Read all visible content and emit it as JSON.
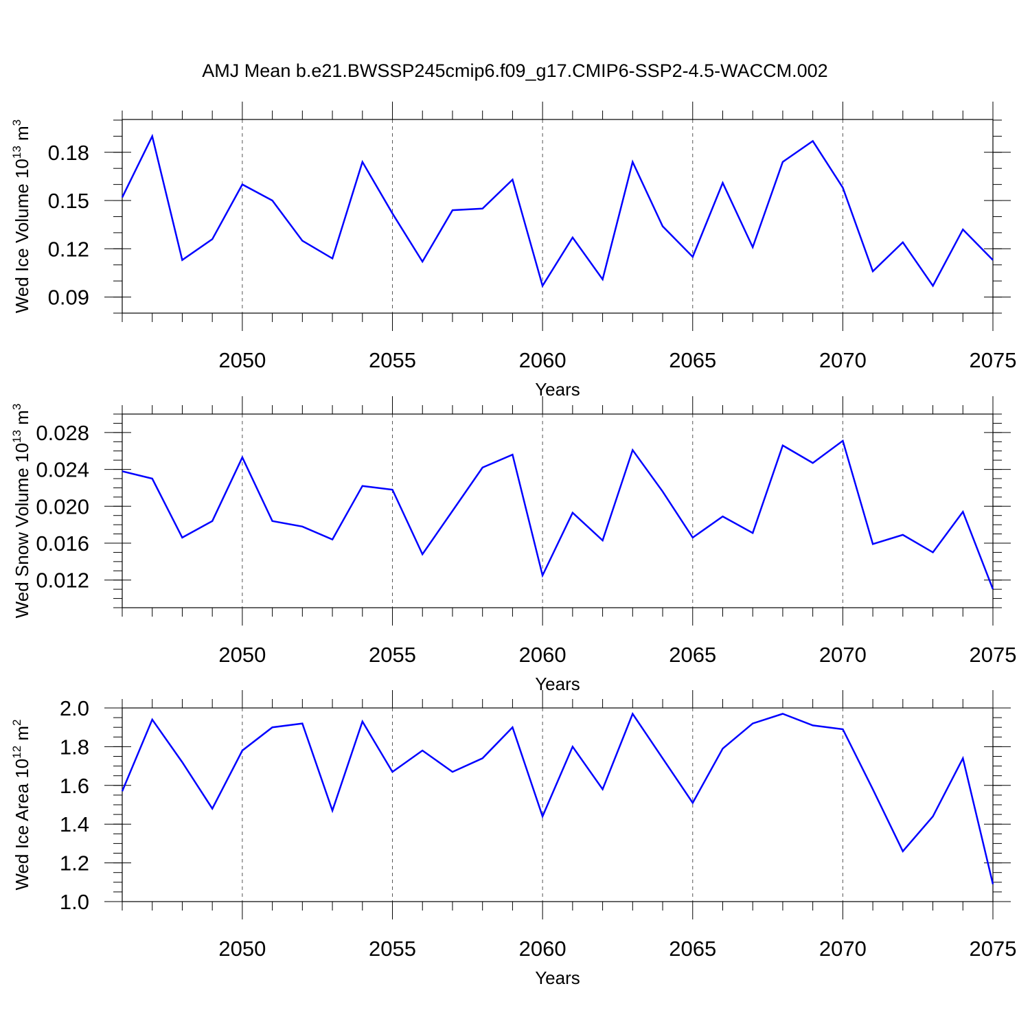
{
  "title": "AMJ Mean b.e21.BWSSP245cmip6.f09_g17.CMIP6-SSP2-4.5-WACCM.002",
  "colors": {
    "line": "#0000ff",
    "axis": "#000000",
    "grid": "#555555"
  },
  "chart_data": [
    {
      "type": "line",
      "ylabel": "Wed Ice Volume",
      "ylabel_unit_base": "10",
      "ylabel_unit_exp": "13",
      "ylabel_unit": "m",
      "ylabel_unit_pow": "3",
      "xlabel": "Years",
      "xlim": [
        2046,
        2075
      ],
      "ylim": [
        0.08,
        0.2004
      ],
      "x_ticks": [
        2050,
        2055,
        2060,
        2065,
        2070,
        2075
      ],
      "y_ticks": [
        "0.09",
        "0.12",
        "0.15",
        "0.18"
      ],
      "y_minor_step": 0.01,
      "grid": "x-dashed",
      "x": [
        2046,
        2047,
        2048,
        2049,
        2050,
        2051,
        2052,
        2053,
        2054,
        2055,
        2056,
        2057,
        2058,
        2059,
        2060,
        2061,
        2062,
        2063,
        2064,
        2065,
        2066,
        2067,
        2068,
        2069,
        2070,
        2071,
        2072,
        2073,
        2074,
        2075
      ],
      "values": [
        0.152,
        0.19,
        0.113,
        0.126,
        0.16,
        0.15,
        0.125,
        0.114,
        0.174,
        0.142,
        0.112,
        0.144,
        0.145,
        0.163,
        0.097,
        0.127,
        0.101,
        0.174,
        0.134,
        0.115,
        0.161,
        0.121,
        0.174,
        0.187,
        0.158,
        0.106,
        0.124,
        0.097,
        0.132,
        0.113
      ]
    },
    {
      "type": "line",
      "ylabel": "Wed Snow Volume",
      "ylabel_unit_base": "10",
      "ylabel_unit_exp": "13",
      "ylabel_unit": "m",
      "ylabel_unit_pow": "3",
      "xlabel": "Years",
      "xlim": [
        2046,
        2075
      ],
      "ylim": [
        0.009,
        0.03
      ],
      "x_ticks": [
        2050,
        2055,
        2060,
        2065,
        2070,
        2075
      ],
      "y_ticks": [
        "0.012",
        "0.016",
        "0.020",
        "0.024",
        "0.028"
      ],
      "y_minor_step": 0.001,
      "grid": "x-dashed",
      "x": [
        2046,
        2047,
        2048,
        2049,
        2050,
        2051,
        2052,
        2053,
        2054,
        2055,
        2056,
        2057,
        2058,
        2059,
        2060,
        2061,
        2062,
        2063,
        2064,
        2065,
        2066,
        2067,
        2068,
        2069,
        2070,
        2071,
        2072,
        2073,
        2074,
        2075
      ],
      "values": [
        0.0238,
        0.023,
        0.0166,
        0.0184,
        0.0253,
        0.0184,
        0.0178,
        0.0164,
        0.0222,
        0.0218,
        0.0148,
        0.0195,
        0.0242,
        0.0256,
        0.0125,
        0.0193,
        0.0163,
        0.0261,
        0.0216,
        0.0166,
        0.0189,
        0.0171,
        0.0266,
        0.0247,
        0.0271,
        0.0159,
        0.0169,
        0.015,
        0.0194,
        0.011
      ]
    },
    {
      "type": "line",
      "ylabel": "Wed Ice Area",
      "ylabel_unit_base": "10",
      "ylabel_unit_exp": "12",
      "ylabel_unit": "m",
      "ylabel_unit_pow": "2",
      "xlabel": "Years",
      "xlim": [
        2046,
        2075
      ],
      "ylim": [
        1.0,
        2.0
      ],
      "x_ticks": [
        2050,
        2055,
        2060,
        2065,
        2070,
        2075
      ],
      "y_ticks": [
        "1.0",
        "1.2",
        "1.4",
        "1.6",
        "1.8",
        "2.0"
      ],
      "y_minor_step": 0.05,
      "grid": "x-dashed",
      "x": [
        2046,
        2047,
        2048,
        2049,
        2050,
        2051,
        2052,
        2053,
        2054,
        2055,
        2056,
        2057,
        2058,
        2059,
        2060,
        2061,
        2062,
        2063,
        2064,
        2065,
        2066,
        2067,
        2068,
        2069,
        2070,
        2071,
        2072,
        2073,
        2074,
        2075
      ],
      "values": [
        1.57,
        1.94,
        1.72,
        1.48,
        1.78,
        1.9,
        1.92,
        1.47,
        1.93,
        1.67,
        1.78,
        1.67,
        1.74,
        1.9,
        1.44,
        1.8,
        1.58,
        1.97,
        1.74,
        1.51,
        1.79,
        1.92,
        1.97,
        1.91,
        1.89,
        1.58,
        1.26,
        1.44,
        1.74,
        1.09
      ]
    }
  ]
}
